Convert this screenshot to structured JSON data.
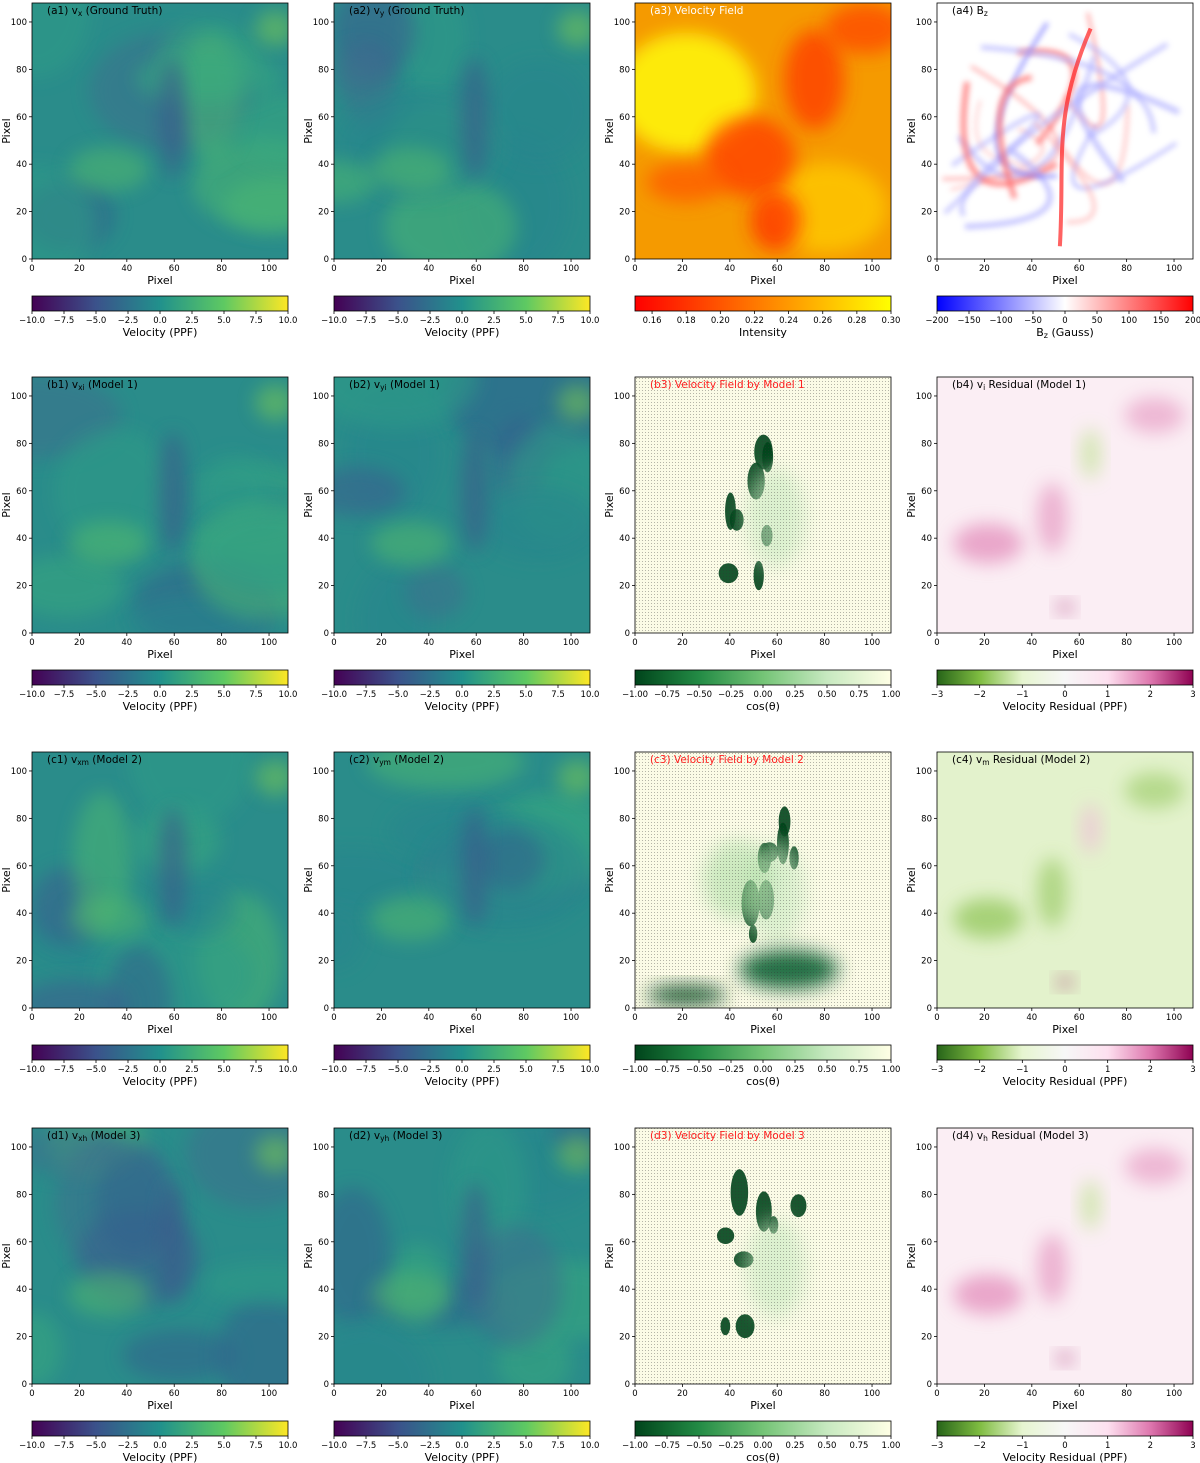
{
  "figure": {
    "axis": {
      "xlabel": "Pixel",
      "ylabel": "Pixel",
      "xlim": [
        0,
        108
      ],
      "ylim": [
        0,
        108
      ],
      "xticks": [
        0,
        20,
        40,
        60,
        80,
        100
      ],
      "yticks": [
        0,
        20,
        40,
        60,
        80,
        100
      ]
    },
    "colorbars": {
      "velocity": {
        "label": "Velocity (PPF)",
        "range": [
          -10,
          10
        ],
        "ticks": [
          "−10.0",
          "−7.5",
          "−5.0",
          "−2.5",
          "0.0",
          "2.5",
          "5.0",
          "7.5",
          "10.0"
        ],
        "colormap": "viridis"
      },
      "intensity": {
        "label": "Intensity",
        "range": [
          0.15,
          0.3
        ],
        "ticks": [
          "0.16",
          "0.18",
          "0.20",
          "0.22",
          "0.24",
          "0.26",
          "0.28",
          "0.30"
        ],
        "colormap": "autumn"
      },
      "bz": {
        "label": "B",
        "label_sub": "z",
        "label_tail": " (Gauss)",
        "range": [
          -200,
          200
        ],
        "ticks": [
          "−200",
          "−150",
          "−100",
          "−50",
          "0",
          "50",
          "100",
          "150",
          "200"
        ],
        "colormap": "bwr"
      },
      "cos": {
        "label": "cos(θ)",
        "range": [
          -1,
          1
        ],
        "ticks": [
          "−1.00",
          "−0.75",
          "−0.50",
          "−0.25",
          "0.00",
          "0.25",
          "0.50",
          "0.75",
          "1.00"
        ],
        "colormap": "greens"
      },
      "residual": {
        "label": "Velocity Residual (PPF)",
        "range": [
          -3,
          3
        ],
        "ticks": [
          "−3",
          "−2",
          "−1",
          "0",
          "1",
          "2",
          "3"
        ],
        "colormap": "PiYG"
      }
    },
    "rows": [
      {
        "panels": [
          {
            "title": "(a1) v",
            "sub": "x",
            "tail": " (Ground Truth)",
            "cbar": "velocity",
            "kind": "vel",
            "seed": 1,
            "titleColor": "#000000"
          },
          {
            "title": "(a2) v",
            "sub": "y",
            "tail": " (Ground Truth)",
            "cbar": "velocity",
            "kind": "vel",
            "seed": 2,
            "titleColor": "#000000"
          },
          {
            "title": "(a3) Velocity Field",
            "sub": "",
            "tail": "",
            "cbar": "intensity",
            "kind": "intensity",
            "seed": 3,
            "titleColor": "#ffffff"
          },
          {
            "title": "(a4) B",
            "sub": "z",
            "tail": "",
            "cbar": "bz",
            "kind": "bz",
            "seed": 4,
            "titleColor": "#000000"
          }
        ]
      },
      {
        "panels": [
          {
            "title": "(b1) v",
            "sub": "xi",
            "tail": " (Model 1)",
            "cbar": "velocity",
            "kind": "vel",
            "seed": 5,
            "titleColor": "#000000"
          },
          {
            "title": "(b2) v",
            "sub": "yi",
            "tail": " (Model 1)",
            "cbar": "velocity",
            "kind": "vel",
            "seed": 6,
            "titleColor": "#000000"
          },
          {
            "title": "(b3) Velocity Field by Model 1",
            "sub": "",
            "tail": "",
            "cbar": "cos",
            "kind": "cos",
            "seed": 7,
            "titleColor": "#ff2020"
          },
          {
            "title": "(b4) v",
            "sub": "i",
            "tail": " Residual (Model 1)",
            "cbar": "residual",
            "kind": "respink",
            "seed": 8,
            "titleColor": "#000000"
          }
        ]
      },
      {
        "panels": [
          {
            "title": "(c1) v",
            "sub": "xm",
            "tail": " (Model 2)",
            "cbar": "velocity",
            "kind": "vel",
            "seed": 9,
            "titleColor": "#000000"
          },
          {
            "title": "(c2) v",
            "sub": "ym",
            "tail": " (Model 2)",
            "cbar": "velocity",
            "kind": "vel",
            "seed": 10,
            "titleColor": "#000000"
          },
          {
            "title": "(c3) Velocity Field by Model 2",
            "sub": "",
            "tail": "",
            "cbar": "cos",
            "kind": "cos2",
            "seed": 11,
            "titleColor": "#ff2020"
          },
          {
            "title": "(c4) v",
            "sub": "m",
            "tail": " Residual (Model 2)",
            "cbar": "residual",
            "kind": "resgreen",
            "seed": 12,
            "titleColor": "#000000"
          }
        ]
      },
      {
        "panels": [
          {
            "title": "(d1) v",
            "sub": "xh",
            "tail": " (Model 3)",
            "cbar": "velocity",
            "kind": "vel",
            "seed": 13,
            "titleColor": "#000000"
          },
          {
            "title": "(d2) v",
            "sub": "yh",
            "tail": " (Model 3)",
            "cbar": "velocity",
            "kind": "vel",
            "seed": 14,
            "titleColor": "#000000"
          },
          {
            "title": "(d3) Velocity Field by Model 3",
            "sub": "",
            "tail": "",
            "cbar": "cos",
            "kind": "cos",
            "seed": 15,
            "titleColor": "#ff2020"
          },
          {
            "title": "(d4) v",
            "sub": "h",
            "tail": " Residual (Model 3)",
            "cbar": "residual",
            "kind": "respink",
            "seed": 16,
            "titleColor": "#000000"
          }
        ]
      }
    ]
  },
  "chart_data": {
    "type": "heatmap",
    "panels": 16,
    "grid": "4x4",
    "xlabel": "Pixel",
    "ylabel": "Pixel",
    "xlim": [
      0,
      108
    ],
    "ylim": [
      0,
      108
    ],
    "colorbar_ranges": {
      "Velocity (PPF)": [
        -10,
        10
      ],
      "Intensity": [
        0.15,
        0.3
      ],
      "B_z (Gauss)": [
        -200,
        200
      ],
      "cos(θ)": [
        -1,
        1
      ],
      "Velocity Residual (PPF)": [
        -3,
        3
      ]
    }
  }
}
